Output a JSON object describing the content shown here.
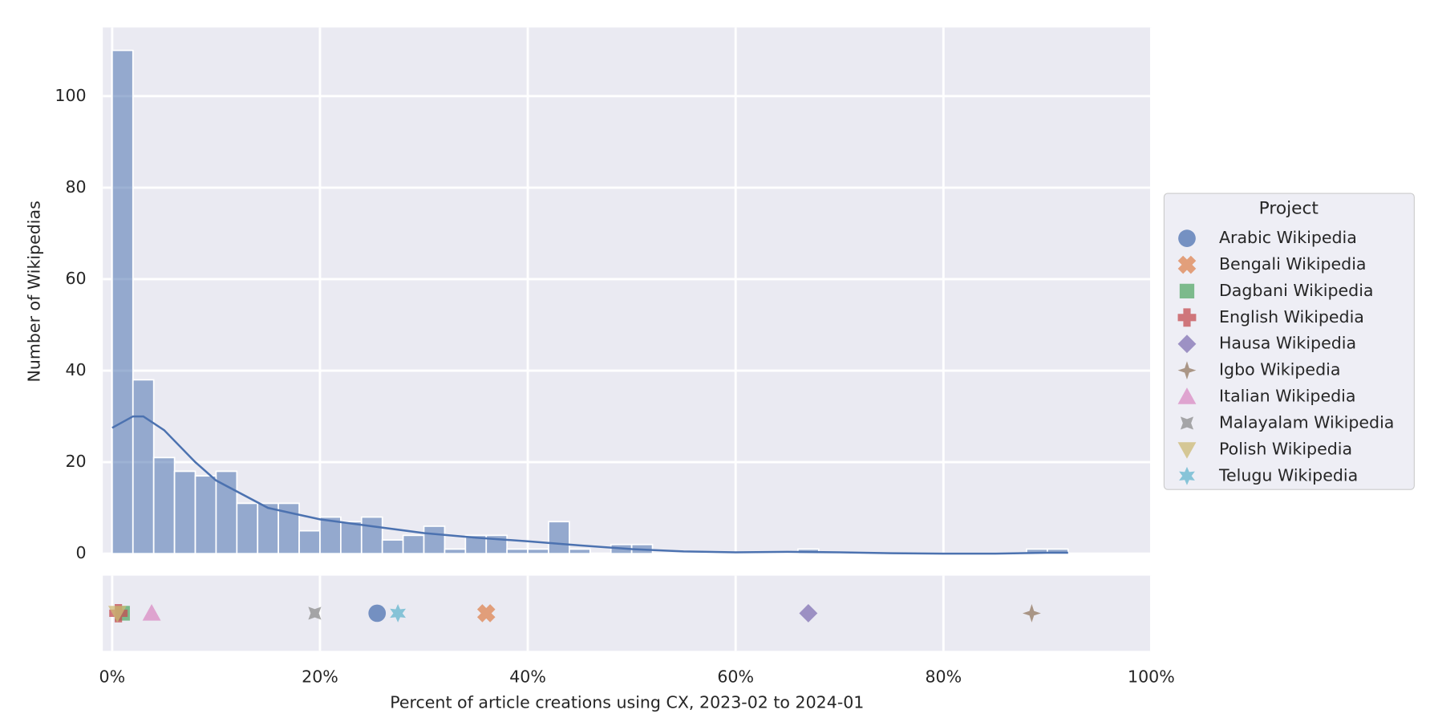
{
  "chart_data": [
    {
      "type": "histogram",
      "ylabel": "Number of Wikipedias",
      "bins": [
        0,
        2,
        4,
        6,
        8,
        10,
        12,
        14,
        16,
        18,
        20,
        22,
        24,
        26,
        28,
        30,
        32,
        34,
        36,
        38,
        40,
        42,
        44,
        46,
        48,
        50,
        52,
        54,
        56,
        58,
        60,
        62,
        64,
        66,
        68,
        70,
        72,
        74,
        76,
        78,
        80,
        82,
        84,
        86,
        88,
        90,
        92
      ],
      "counts": [
        110,
        38,
        21,
        18,
        17,
        18,
        11,
        11,
        11,
        5,
        8,
        7,
        8,
        3,
        4,
        6,
        1,
        4,
        4,
        1,
        1,
        7,
        1,
        0,
        2,
        2,
        0,
        0,
        0,
        0,
        0,
        0,
        0,
        1,
        0,
        0,
        0,
        0,
        0,
        0,
        0,
        0,
        0,
        0,
        1,
        1
      ],
      "color": "#4c72b0",
      "kde_x": [
        0,
        2,
        3,
        5,
        8,
        10,
        15,
        20,
        25,
        30,
        35,
        40,
        45,
        50,
        55,
        60,
        65,
        70,
        75,
        80,
        85,
        90,
        92
      ],
      "kde_y": [
        27.5,
        30,
        30,
        27,
        20,
        16,
        10,
        7.5,
        6,
        4.5,
        3.5,
        2.7,
        1.8,
        1,
        0.5,
        0.3,
        0.4,
        0.3,
        0.1,
        0,
        0,
        0.2,
        0.2
      ],
      "xlim": [
        -0.9,
        100
      ],
      "ylim": [
        0,
        115
      ],
      "yticks": [
        0,
        20,
        40,
        60,
        80,
        100
      ],
      "grid": true
    },
    {
      "type": "scatter",
      "xlabel": "Percent of article creations using CX, 2023-02 to 2024-01",
      "xlim": [
        -0.9,
        100
      ],
      "xticks": [
        {
          "value": 0,
          "label": "0%"
        },
        {
          "value": 20,
          "label": "20%"
        },
        {
          "value": 40,
          "label": "40%"
        },
        {
          "value": 60,
          "label": "60%"
        },
        {
          "value": 80,
          "label": "80%"
        },
        {
          "value": 100,
          "label": "100%"
        }
      ],
      "grid": true,
      "legend_title": "Project",
      "legend_position": "right",
      "series": [
        {
          "name": "Arabic Wikipedia",
          "color": "#4c72b0",
          "marker": "o",
          "x": 25.5
        },
        {
          "name": "Bengali Wikipedia",
          "color": "#dd8452",
          "marker": "X",
          "x": 36
        },
        {
          "name": "Dagbani Wikipedia",
          "color": "#55a868",
          "marker": "s",
          "x": 1.0
        },
        {
          "name": "English Wikipedia",
          "color": "#c44e52",
          "marker": "P",
          "x": 0.6
        },
        {
          "name": "Hausa Wikipedia",
          "color": "#8172b3",
          "marker": "D",
          "x": 67
        },
        {
          "name": "Igbo Wikipedia",
          "color": "#937860",
          "marker": "star4",
          "x": 88.5
        },
        {
          "name": "Italian Wikipedia",
          "color": "#da8bc3",
          "marker": "^",
          "x": 3.8
        },
        {
          "name": "Malayalam Wikipedia",
          "color": "#8c8c8c",
          "marker": "star4x",
          "x": 19.5
        },
        {
          "name": "Polish Wikipedia",
          "color": "#ccb974",
          "marker": "v",
          "x": 0.5
        },
        {
          "name": "Telugu Wikipedia",
          "color": "#64b5cd",
          "marker": "star6",
          "x": 27.5
        }
      ]
    }
  ]
}
